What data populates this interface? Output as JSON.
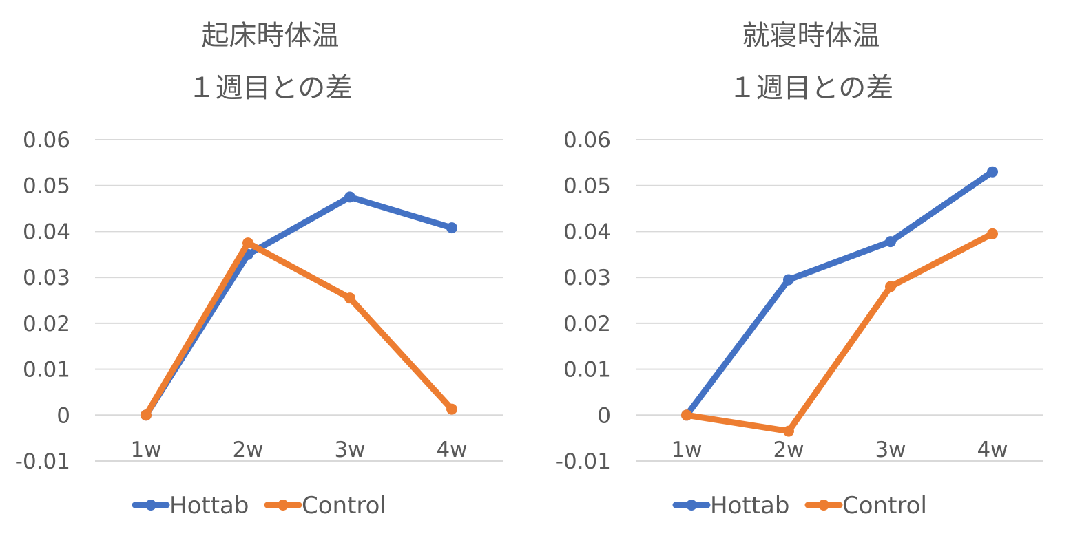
{
  "chart_data": [
    {
      "type": "line",
      "title": "起床時体温",
      "subtitle": "１週目との差",
      "categories": [
        "1w",
        "2w",
        "3w",
        "4w"
      ],
      "yticks": [
        "-0.01",
        "0",
        "0.01",
        "0.02",
        "0.03",
        "0.04",
        "0.05",
        "0.06"
      ],
      "ylim": [
        -0.01,
        0.06
      ],
      "grid": true,
      "legend_position": "bottom",
      "series": [
        {
          "name": "Hottab",
          "color": "#4472C4",
          "values": [
            0,
            0.035,
            0.0475,
            0.0408
          ]
        },
        {
          "name": "Control",
          "color": "#ED7D31",
          "values": [
            0,
            0.0375,
            0.0255,
            0.0013
          ]
        }
      ]
    },
    {
      "type": "line",
      "title": "就寝時体温",
      "subtitle": "１週目との差",
      "categories": [
        "1w",
        "2w",
        "3w",
        "4w"
      ],
      "yticks": [
        "-0.01",
        "0",
        "0.01",
        "0.02",
        "0.03",
        "0.04",
        "0.05",
        "0.06"
      ],
      "ylim": [
        -0.01,
        0.06
      ],
      "grid": true,
      "legend_position": "bottom",
      "series": [
        {
          "name": "Hottab",
          "color": "#4472C4",
          "values": [
            0,
            0.0295,
            0.0378,
            0.053
          ]
        },
        {
          "name": "Control",
          "color": "#ED7D31",
          "values": [
            0,
            -0.0035,
            0.028,
            0.0395
          ]
        }
      ]
    }
  ]
}
